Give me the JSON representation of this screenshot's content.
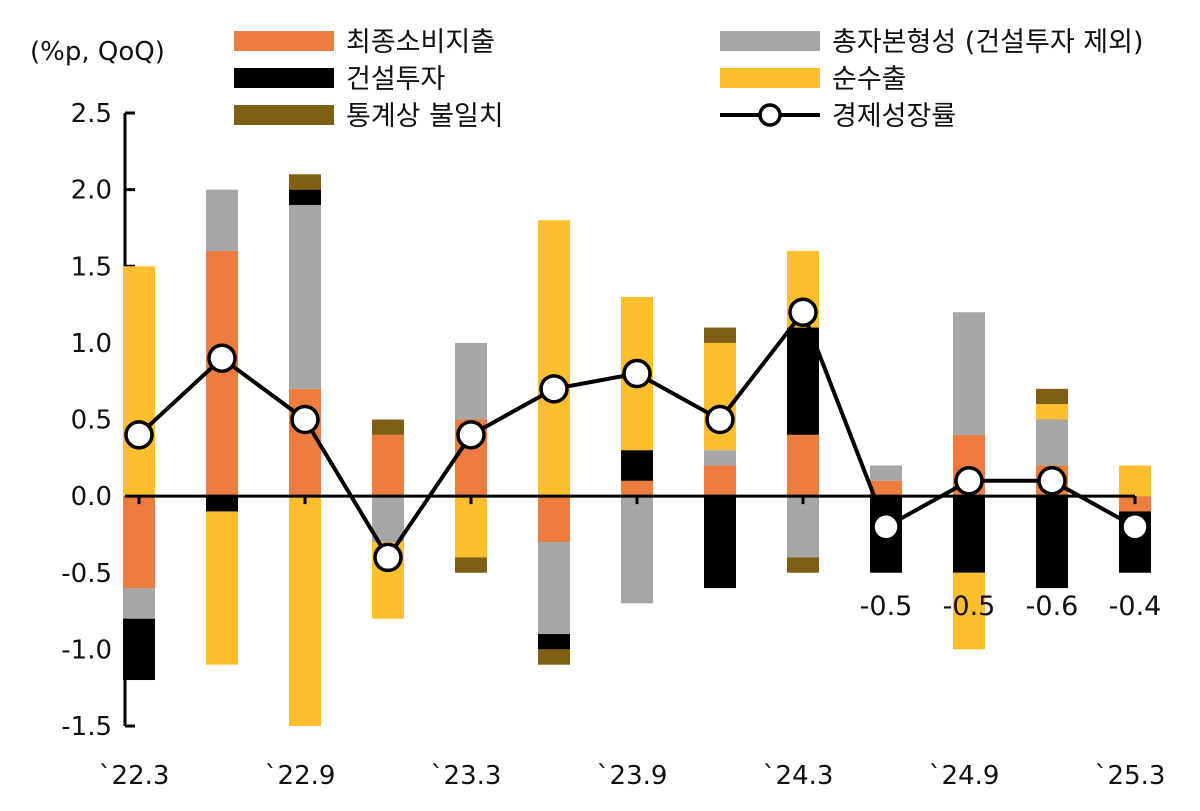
{
  "chart_data": {
    "type": "bar",
    "stacked": true,
    "unit_label": "(%p, QoQ)",
    "ylim": [
      -1.5,
      2.5
    ],
    "yticks": [
      "2.5",
      "2.0",
      "1.5",
      "1.0",
      "0.5",
      "0.0",
      "-0.5",
      "-1.0",
      "-1.5"
    ],
    "ytick_values": [
      2.5,
      2.0,
      1.5,
      1.0,
      0.5,
      0.0,
      -0.5,
      -1.0,
      -1.5
    ],
    "x_tick_labels": [
      "`22.3",
      "`22.9",
      "`23.3",
      "`23.9",
      "`24.3",
      "`24.9",
      "`25.3"
    ],
    "categories": [
      "22.3",
      "22.6",
      "22.9",
      "22.12",
      "23.3",
      "23.6",
      "23.9",
      "23.12",
      "24.3",
      "24.6",
      "24.9",
      "24.12",
      "25.3"
    ],
    "legend_position": "top",
    "colors": {
      "consumption": "#ED7D3F",
      "gfcf_ex_construction": "#A6A6A6",
      "construction": "#000000",
      "net_exports": "#FDBF2D",
      "discrepancy": "#7F5F14",
      "gdp_line": "#000000"
    },
    "series": [
      {
        "key": "consumption",
        "name": "최종소비지출",
        "values": [
          -0.6,
          1.6,
          0.7,
          0.4,
          0.5,
          -0.3,
          0.1,
          0.2,
          0.4,
          0.1,
          0.4,
          0.2,
          -0.1
        ]
      },
      {
        "key": "gfcf_ex_construction",
        "name": "총자본형성 (건설투자 제외)",
        "values": [
          -0.2,
          0.4,
          1.2,
          -0.3,
          0.5,
          -0.6,
          -0.7,
          0.1,
          -0.4,
          0.1,
          0.8,
          0.3,
          0.0
        ]
      },
      {
        "key": "construction",
        "name": "건설투자",
        "values": [
          -0.4,
          -0.1,
          0.1,
          0.0,
          0.0,
          -0.1,
          0.2,
          -0.6,
          0.7,
          -0.5,
          -0.5,
          -0.6,
          -0.4
        ]
      },
      {
        "key": "net_exports",
        "name": "순수출",
        "values": [
          1.5,
          -1.0,
          -1.5,
          -0.5,
          -0.4,
          1.8,
          1.0,
          0.7,
          0.5,
          0.0,
          -0.5,
          0.1,
          0.2
        ]
      },
      {
        "key": "discrepancy",
        "name": "통계상 불일치",
        "values": [
          0.0,
          0.0,
          0.1,
          0.1,
          -0.1,
          -0.1,
          0.0,
          0.1,
          -0.1,
          0.0,
          0.0,
          0.1,
          0.0
        ]
      }
    ],
    "line": {
      "name": "경제성장률",
      "values": [
        0.4,
        0.9,
        0.5,
        -0.4,
        0.4,
        0.7,
        0.8,
        0.5,
        1.2,
        -0.2,
        0.1,
        0.1,
        -0.2
      ]
    },
    "annotations": [
      {
        "index": 9,
        "text": "-0.5"
      },
      {
        "index": 10,
        "text": "-0.5"
      },
      {
        "index": 11,
        "text": "-0.6"
      },
      {
        "index": 12,
        "text": "-0.4"
      }
    ]
  }
}
